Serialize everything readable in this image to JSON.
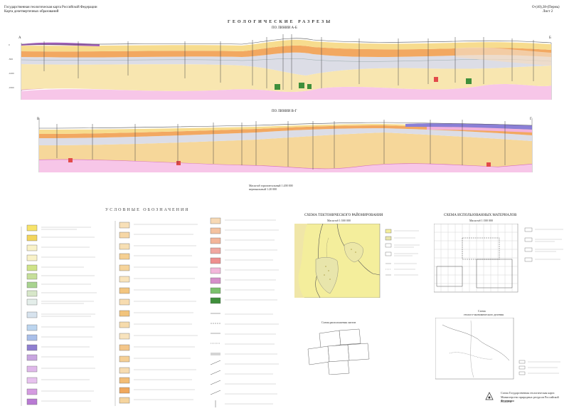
{
  "header": {
    "left_line1": "Государственная геологическая карта Российской Федерации",
    "left_line2": "Карта дочетвертичных образований",
    "right_code": "О-(40),38-(Пермь)",
    "right_sheet": "Лист 2"
  },
  "sections": {
    "main_title": "ГЕОЛОГИЧЕСКИЕ РАЗРЕЗЫ",
    "line_a_label": "ПО ЛИНИИ А-Б",
    "line_b_label": "ПО ЛИНИИ В-Г",
    "scale_note_1": "Масштаб горизонтальный 1:200 000",
    "scale_note_2": "вертикальный 1:20 000",
    "a_start": "А",
    "a_end": "Б",
    "b_start": "В",
    "b_end": "Г"
  },
  "legend": {
    "title": "УСЛОВНЫЕ ОБОЗНАЧЕНИЯ"
  },
  "tectonic": {
    "title": "СХЕМА ТЕКТОНИЧЕСКОГО РАЙОНИРОВАНИЯ",
    "subtitle": "Масштаб 1:500 000"
  },
  "materials": {
    "title": "СХЕМА ИСПОЛЬЗОВАННЫХ МАТЕРИАЛОВ",
    "subtitle": "Масштаб 1:500 000"
  },
  "adjacent": {
    "title": "Схема расположения листов"
  },
  "zoning": {
    "title_line1": "Схема",
    "title_line2": "геолого-экономического деления"
  },
  "footer": {
    "line1": "Схема Государственная геологическая карта",
    "line2": "Министерство природных ресурсов Российской Федерации",
    "line3": "ВСЕГЕИ"
  },
  "colors": {
    "sec_yellow": "#f6e3a3",
    "sec_orange": "#f2a861",
    "sec_gray": "#d9d9e3",
    "sec_pink": "#f1a3d9",
    "sec_purple": "#9b4fb2",
    "sec_green": "#3f8f3b",
    "sec_red": "#e24a4a",
    "sec_blue": "#6f8fd6"
  }
}
